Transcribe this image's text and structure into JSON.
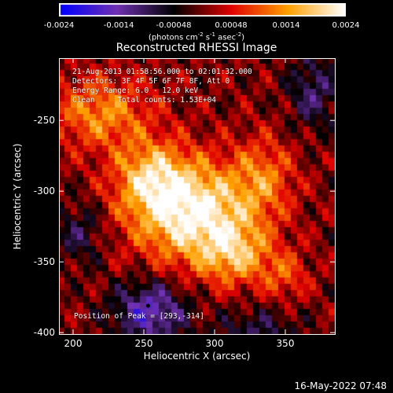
{
  "colorbar": {
    "ticks": [
      "-0.0024",
      "-0.0014",
      "-0.00048",
      "0.00048",
      "0.0014",
      "0.0024"
    ],
    "tick_values": [
      -0.0024,
      -0.0014,
      -0.00048,
      0.00048,
      0.0014,
      0.0024
    ],
    "range": [
      -0.0024,
      0.0024
    ],
    "units_main": "(photons cm",
    "units_sup1": "-2",
    "units_mid": " s",
    "units_sup2": "-1",
    "units_mid2": " asec",
    "units_sup3": "-2",
    "units_end": ")"
  },
  "annotations": {
    "line1": "21-Aug-2013 01:58:56.000 to 02:01:32.000",
    "line2": "Detectors: 3F 4F 5F 6F 7F 8F, Att 0",
    "line3": "Energy Range: 6.0 - 12.0 keV",
    "line4": "Clean     Total counts: 1.53E+04",
    "peak": "Position of Peak = [293,-314]"
  },
  "timestamp": "16-May-2022 07:48",
  "colors": {
    "background": "#000000",
    "colormap": [
      "#0000ff",
      "#7030b0",
      "#000000",
      "#e00000",
      "#ffa000",
      "#ffffff"
    ]
  },
  "chart_data": {
    "type": "heatmap",
    "title": "Reconstructed RHESSI Image",
    "xlabel": "Heliocentric X (arcsec)",
    "ylabel": "Heliocentric Y (arcsec)",
    "xlim": [
      190,
      385
    ],
    "ylim": [
      -401,
      -206
    ],
    "xticks": [
      200,
      250,
      300,
      350
    ],
    "xtick_labels": [
      "200",
      "250",
      "300",
      "350"
    ],
    "yticks": [
      -400,
      -350,
      -300,
      -250
    ],
    "ytick_labels": [
      "-400",
      "-350",
      "-300",
      "-250"
    ],
    "value_range": [
      -0.0024,
      0.0024
    ],
    "peak_position": [
      293,
      -314
    ],
    "sources": [
      {
        "x": 285,
        "y": -315,
        "sx": 30,
        "sy": 25,
        "amp": 0.0024
      },
      {
        "x": 255,
        "y": -290,
        "sx": 18,
        "sy": 18,
        "amp": 0.0014
      },
      {
        "x": 220,
        "y": -245,
        "sx": 25,
        "sy": 18,
        "amp": 0.0013
      },
      {
        "x": 315,
        "y": -345,
        "sx": 18,
        "sy": 15,
        "amp": 0.0013
      },
      {
        "x": 335,
        "y": -290,
        "sx": 15,
        "sy": 20,
        "amp": 0.001
      },
      {
        "x": 350,
        "y": -360,
        "sx": 12,
        "sy": 12,
        "amp": 0.0008
      },
      {
        "x": 205,
        "y": -330,
        "sx": 12,
        "sy": 15,
        "amp": -0.0008
      },
      {
        "x": 255,
        "y": -385,
        "sx": 18,
        "sy": 15,
        "amp": -0.0016
      },
      {
        "x": 370,
        "y": -230,
        "sx": 12,
        "sy": 18,
        "amp": -0.001
      },
      {
        "x": 330,
        "y": -400,
        "sx": 20,
        "sy": 12,
        "amp": -0.0008
      }
    ]
  }
}
